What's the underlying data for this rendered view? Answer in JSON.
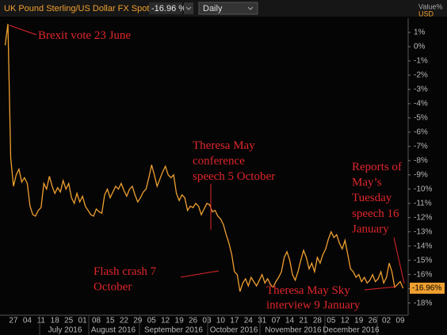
{
  "header": {
    "instrument": "UK Pound Sterling/US Dollar FX Spot Rate",
    "change": "-16.96 %",
    "interval": "Daily"
  },
  "chart_data": {
    "type": "line",
    "axis_title_lines": [
      "Value%",
      "USD"
    ],
    "current_label": "-16.96%",
    "categories": [
      null,
      null,
      null,
      "27",
      null,
      null,
      null,
      null,
      "04",
      null,
      null,
      null,
      null,
      "11",
      null,
      null,
      null,
      null,
      "18",
      null,
      null,
      null,
      null,
      "25",
      null,
      null,
      null,
      null,
      "01",
      null,
      null,
      null,
      null,
      "08",
      null,
      null,
      null,
      null,
      "15",
      null,
      null,
      null,
      null,
      "22",
      null,
      null,
      null,
      null,
      "29",
      null,
      null,
      null,
      null,
      "05",
      null,
      null,
      null,
      null,
      "12",
      null,
      null,
      null,
      null,
      "19",
      null,
      null,
      null,
      null,
      "26",
      null,
      null,
      null,
      null,
      "03",
      null,
      null,
      null,
      null,
      "10",
      null,
      null,
      null,
      null,
      "17",
      null,
      null,
      null,
      null,
      "24",
      null,
      null,
      null,
      null,
      "31",
      null,
      null,
      null,
      null,
      "07",
      null,
      null,
      null,
      null,
      "14",
      null,
      null,
      null,
      null,
      "21",
      null,
      null,
      null,
      null,
      "28",
      null,
      null,
      null,
      null,
      "05",
      null,
      null,
      null,
      null,
      "12",
      null,
      null,
      null,
      null,
      "19",
      null,
      null,
      null,
      null,
      "26",
      null,
      null,
      null,
      null,
      "02",
      null,
      null,
      null,
      null,
      "09",
      null
    ],
    "months": [
      "July 2016",
      "August 2016",
      "September 2016",
      "October 2016",
      "November 2016",
      "December 2016"
    ],
    "series": [
      {
        "name": "GBP/USD",
        "color": "#f0a030",
        "values": [
          0.1,
          1.6,
          -7.8,
          -9.8,
          -9.0,
          -8.6,
          -9.5,
          -9.2,
          -9.6,
          -11.2,
          -11.8,
          -11.9,
          -11.5,
          -11.3,
          -9.6,
          -10.0,
          -9.1,
          -9.8,
          -10.3,
          -9.9,
          -10.2,
          -9.4,
          -10.0,
          -9.6,
          -10.6,
          -11.0,
          -10.3,
          -10.9,
          -10.5,
          -11.2,
          -11.5,
          -11.8,
          -11.9,
          -11.4,
          -11.6,
          -11.7,
          -10.4,
          -10.0,
          -10.6,
          -10.2,
          -9.8,
          -10.0,
          -9.6,
          -10.1,
          -10.5,
          -10.0,
          -9.8,
          -10.4,
          -10.9,
          -10.6,
          -10.2,
          -10.0,
          -9.2,
          -8.3,
          -9.0,
          -9.8,
          -9.3,
          -8.8,
          -8.4,
          -9.0,
          -9.2,
          -9.0,
          -10.3,
          -10.8,
          -10.4,
          -10.6,
          -11.5,
          -11.2,
          -11.3,
          -11.0,
          -11.2,
          -11.8,
          -11.4,
          -11.0,
          -11.1,
          -11.6,
          -11.5,
          -11.9,
          -12.1,
          -12.5,
          -13.2,
          -13.8,
          -14.6,
          -15.8,
          -16.0,
          -17.2,
          -16.6,
          -16.3,
          -16.8,
          -16.2,
          -16.5,
          -16.8,
          -16.4,
          -16.0,
          -16.6,
          -16.3,
          -16.7,
          -16.9,
          -16.5,
          -16.2,
          -15.8,
          -14.8,
          -14.4,
          -15.0,
          -16.0,
          -16.4,
          -15.8,
          -15.0,
          -14.3,
          -14.8,
          -15.6,
          -15.2,
          -15.8,
          -14.8,
          -15.2,
          -14.6,
          -14.2,
          -13.5,
          -13.0,
          -13.4,
          -13.2,
          -13.8,
          -14.2,
          -13.6,
          -14.6,
          -15.6,
          -15.8,
          -16.2,
          -16.0,
          -16.5,
          -16.2,
          -16.6,
          -16.4,
          -16.0,
          -16.5,
          -16.3,
          -15.8,
          -16.6,
          -16.2,
          -15.2,
          -15.8,
          -16.9,
          -16.7,
          -16.5,
          -16.96
        ]
      }
    ],
    "ylim": [
      -18.8,
      2
    ],
    "yticks": [
      {
        "value": 1,
        "label": "1%"
      },
      {
        "value": 0,
        "label": "0%"
      },
      {
        "value": -1,
        "label": "-1%"
      },
      {
        "value": -2,
        "label": "-2%"
      },
      {
        "value": -3,
        "label": "-3%"
      },
      {
        "value": -4,
        "label": "-4%"
      },
      {
        "value": -5,
        "label": "-5%"
      },
      {
        "value": -6,
        "label": "-6%"
      },
      {
        "value": -7,
        "label": "-7%"
      },
      {
        "value": -8,
        "label": "-8%"
      },
      {
        "value": -9,
        "label": "-9%"
      },
      {
        "value": -10,
        "label": "-10%"
      },
      {
        "value": -11,
        "label": "-11%"
      },
      {
        "value": -12,
        "label": "-12%"
      },
      {
        "value": -13,
        "label": "-13%"
      },
      {
        "value": -14,
        "label": "-14%"
      },
      {
        "value": -15,
        "label": "-15%"
      },
      {
        "value": -16,
        "label": "-16%"
      },
      {
        "value": -17,
        "label": "-17%"
      },
      {
        "value": -18,
        "label": "-18%"
      }
    ],
    "grid": false,
    "annotations": [
      {
        "lines": [
          "Brexit vote 23 June"
        ]
      },
      {
        "lines": [
          "Theresa May",
          "conference",
          "speech 5 October"
        ]
      },
      {
        "lines": [
          "Reports of",
          "May’s",
          "Tuesday",
          "speech 16",
          "January"
        ]
      },
      {
        "lines": [
          "Flash crash 7",
          "October"
        ]
      },
      {
        "lines": [
          "Theresa May Sky",
          "interview 9 January"
        ]
      }
    ]
  }
}
